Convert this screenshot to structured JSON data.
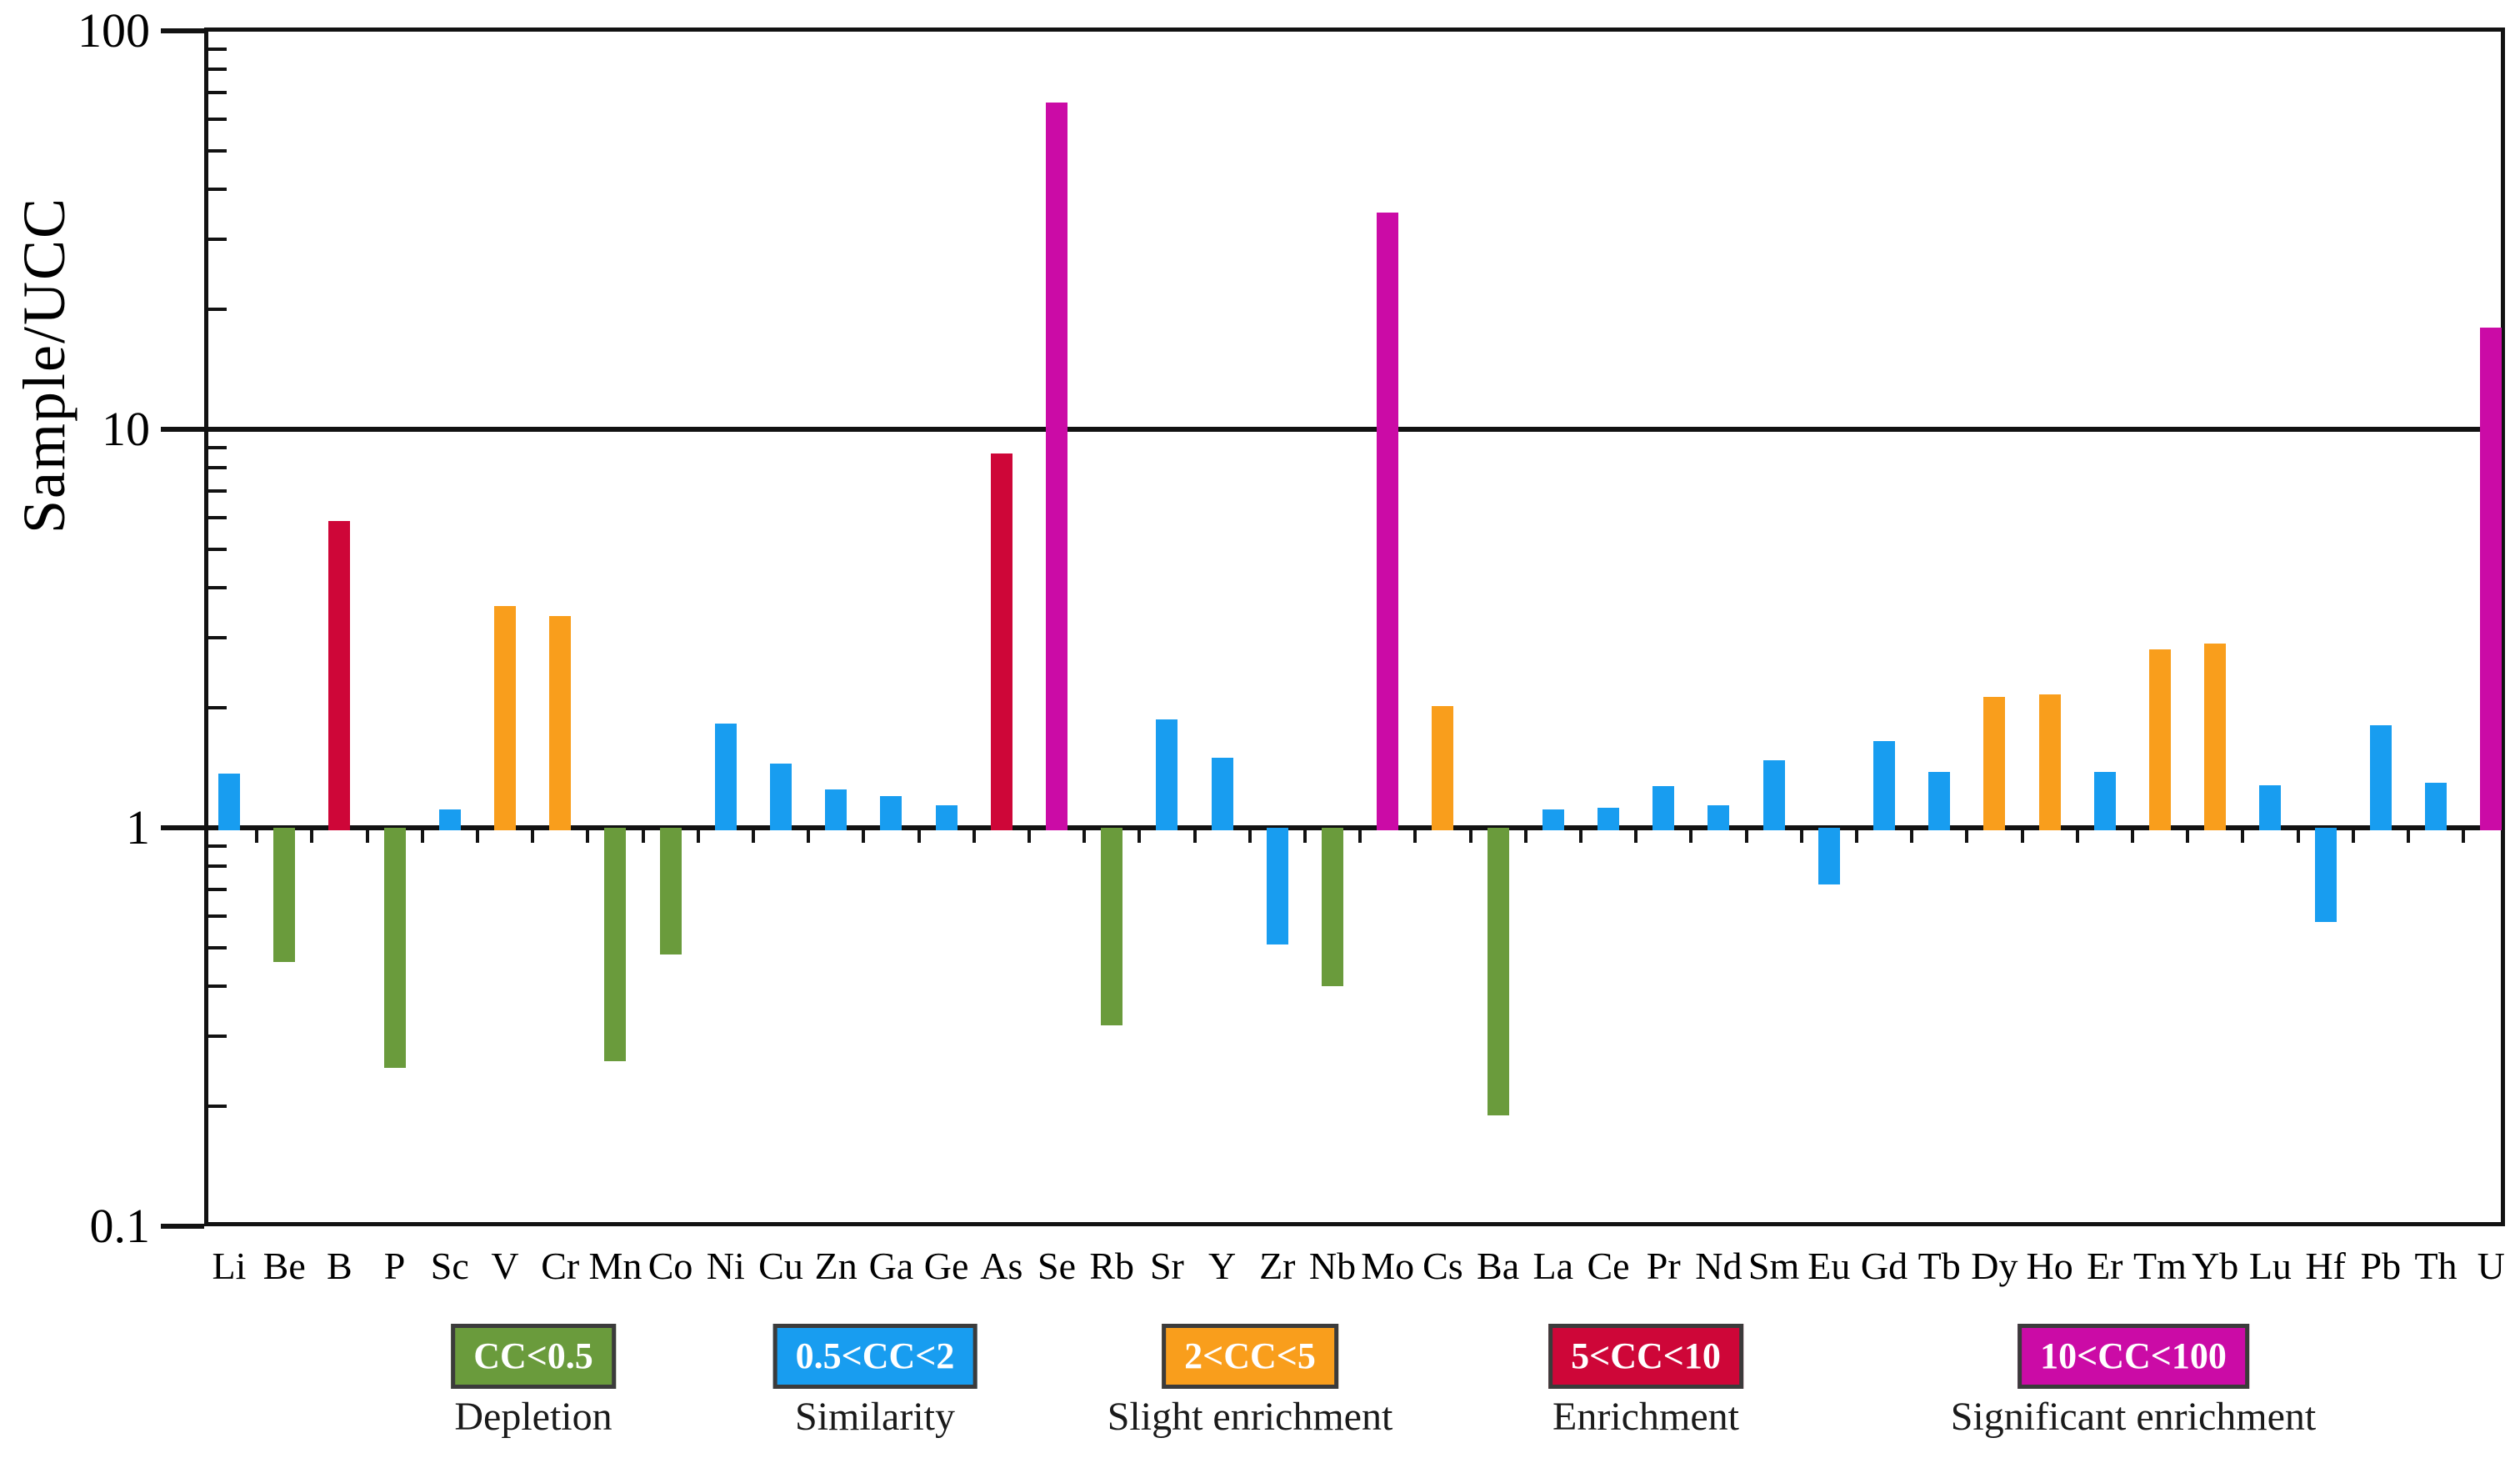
{
  "chart_data": {
    "type": "bar",
    "title": "",
    "ylabel": "Sample/UCC",
    "xlabel": "",
    "scale": "log",
    "ylim": [
      0.1,
      100
    ],
    "yticks": [
      100,
      10,
      1,
      0.1
    ],
    "ytick_labels": [
      "100",
      "10",
      "1",
      "0.1"
    ],
    "baseline": 1,
    "reference_line": 10,
    "grid": "off",
    "legend_position": "bottom",
    "categories": [
      "Li",
      "Be",
      "B",
      "P",
      "Sc",
      "V",
      "Cr",
      "Mn",
      "Co",
      "Ni",
      "Cu",
      "Zn",
      "Ga",
      "Ge",
      "As",
      "Se",
      "Rb",
      "Sr",
      "Y",
      "Zr",
      "Nb",
      "Mo",
      "Cs",
      "Ba",
      "La",
      "Ce",
      "Pr",
      "Nd",
      "Sm",
      "Eu",
      "Gd",
      "Tb",
      "Dy",
      "Ho",
      "Er",
      "Tm",
      "Yb",
      "Lu",
      "Hf",
      "Pb",
      "Th",
      "U"
    ],
    "values": [
      1.37,
      0.46,
      5.9,
      0.25,
      1.11,
      3.6,
      3.4,
      0.26,
      0.48,
      1.83,
      1.45,
      1.25,
      1.2,
      1.14,
      8.7,
      66,
      0.32,
      1.87,
      1.5,
      0.51,
      0.4,
      35,
      2.02,
      0.19,
      1.11,
      1.12,
      1.27,
      1.14,
      1.48,
      0.72,
      1.65,
      1.38,
      2.13,
      2.16,
      1.38,
      2.8,
      2.9,
      1.28,
      0.58,
      1.81,
      1.3,
      18
    ],
    "bands": [
      {
        "range": "CC<0.5",
        "label": "Depletion",
        "color": "#6A9B3C",
        "max": 0.5
      },
      {
        "range": "0.5<CC<2",
        "label": "Similarity",
        "color": "#189DF0",
        "max": 2
      },
      {
        "range": "2<CC<5",
        "label": "Slight enrichment",
        "color": "#F99E1C",
        "max": 5
      },
      {
        "range": "5<CC<10",
        "label": "Enrichment",
        "color": "#CE0638",
        "max": 10
      },
      {
        "range": "10<CC<100",
        "label": "Significant enrichment",
        "color": "#CB0BA6",
        "max": 100
      }
    ]
  }
}
